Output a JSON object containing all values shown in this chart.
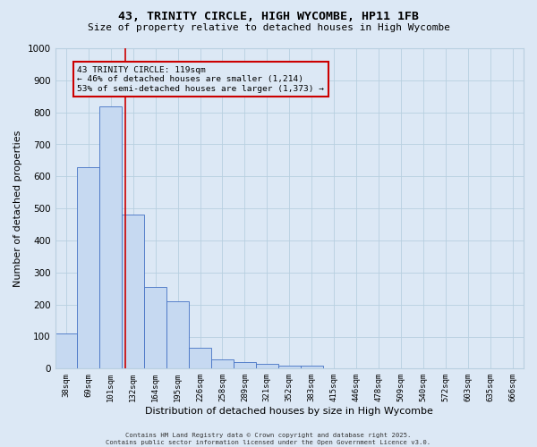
{
  "title": "43, TRINITY CIRCLE, HIGH WYCOMBE, HP11 1FB",
  "subtitle": "Size of property relative to detached houses in High Wycombe",
  "xlabel": "Distribution of detached houses by size in High Wycombe",
  "ylabel": "Number of detached properties",
  "categories": [
    "38sqm",
    "69sqm",
    "101sqm",
    "132sqm",
    "164sqm",
    "195sqm",
    "226sqm",
    "258sqm",
    "289sqm",
    "321sqm",
    "352sqm",
    "383sqm",
    "415sqm",
    "446sqm",
    "478sqm",
    "509sqm",
    "540sqm",
    "572sqm",
    "603sqm",
    "635sqm",
    "666sqm"
  ],
  "values": [
    110,
    630,
    820,
    480,
    255,
    210,
    65,
    28,
    20,
    15,
    10,
    8,
    0,
    0,
    0,
    0,
    0,
    0,
    0,
    0,
    0
  ],
  "bar_color": "#c6d9f1",
  "bar_edge_color": "#4472c4",
  "grid_color": "#b8cfe0",
  "bg_color": "#dce8f5",
  "vline_x": 2.65,
  "vline_color": "#cc0000",
  "annotation_text": "43 TRINITY CIRCLE: 119sqm\n← 46% of detached houses are smaller (1,214)\n53% of semi-detached houses are larger (1,373) →",
  "annotation_box_color": "#cc0000",
  "ylim": [
    0,
    1000
  ],
  "yticks": [
    0,
    100,
    200,
    300,
    400,
    500,
    600,
    700,
    800,
    900,
    1000
  ],
  "footer": "Contains HM Land Registry data © Crown copyright and database right 2025.\nContains public sector information licensed under the Open Government Licence v3.0."
}
